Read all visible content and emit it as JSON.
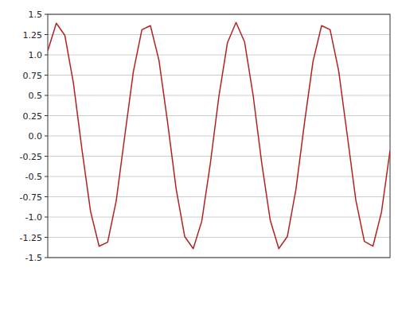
{
  "chart_data": {
    "type": "line",
    "x": [
      0,
      0.25,
      0.5,
      0.75,
      1,
      1.25,
      1.5,
      1.75,
      2,
      2.25,
      2.5,
      2.75,
      3,
      3.25,
      3.5,
      3.75,
      4,
      4.25,
      4.5,
      4.75,
      5,
      5.25,
      5.5,
      5.75,
      6,
      6.25,
      6.5,
      6.75,
      7,
      7.25,
      7.5,
      7.75,
      8,
      8.25,
      8.5,
      8.75,
      9,
      9.25,
      9.5,
      9.75,
      10
    ],
    "values": [
      1.05,
      1.39,
      1.24,
      0.65,
      -0.17,
      -0.93,
      -1.36,
      -1.31,
      -0.8,
      0.0,
      0.79,
      1.31,
      1.36,
      0.93,
      0.17,
      -0.65,
      -1.24,
      -1.39,
      -1.05,
      -0.34,
      0.49,
      1.15,
      1.4,
      1.16,
      0.5,
      -0.33,
      -1.04,
      -1.39,
      -1.24,
      -0.66,
      0.16,
      0.92,
      1.36,
      1.31,
      0.8,
      0.01,
      -0.79,
      -1.3,
      -1.36,
      -0.94,
      -0.18
    ],
    "color": "#b22222",
    "xlim": [
      0,
      10
    ],
    "ylim": [
      -1.5,
      1.5
    ],
    "yticks": [
      -1.5,
      -1.25,
      {
        "value": -1,
        "label": "-1.0"
      },
      -0.75,
      -0.5,
      -0.25,
      {
        "value": 0,
        "label": "0.0"
      },
      0.25,
      0.5,
      0.75,
      {
        "value": 1,
        "label": "1.0"
      },
      1.25,
      1.5
    ],
    "grid": true,
    "tick_labels": "y"
  }
}
